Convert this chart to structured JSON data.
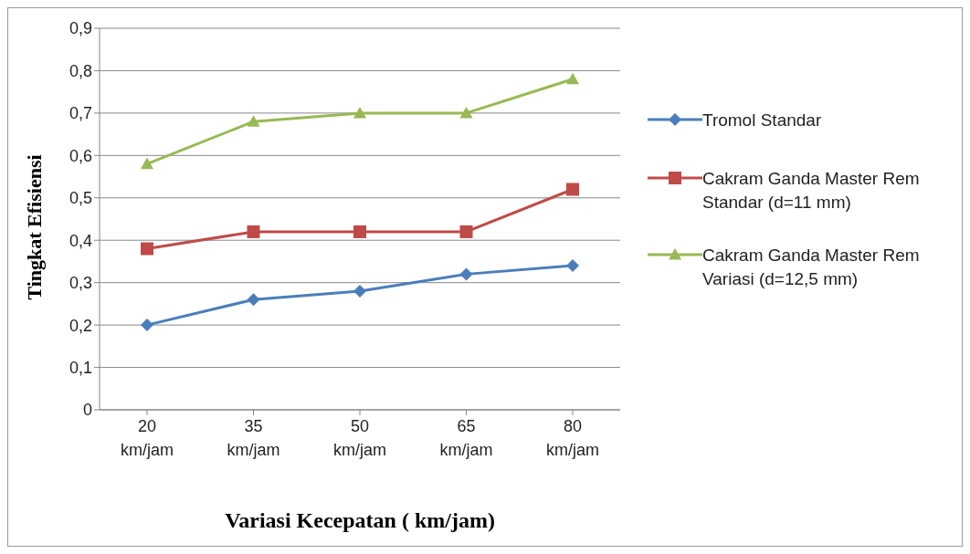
{
  "chart_data": {
    "type": "line",
    "xlabel": "Variasi Kecepatan ( km/jam)",
    "ylabel": "Tingkat Efisiensi",
    "categories": [
      "20 km/jam",
      "35 km/jam",
      "50 km/jam",
      "65 km/jam",
      "80 km/jam"
    ],
    "series": [
      {
        "name": "Tromol Standar",
        "color": "#4a7ebb",
        "marker": "diamond",
        "values": [
          0.2,
          0.26,
          0.28,
          0.32,
          0.34
        ]
      },
      {
        "name": "Cakram Ganda Master Rem Standar (d=11 mm)",
        "color": "#be4b48",
        "marker": "square",
        "values": [
          0.38,
          0.42,
          0.42,
          0.42,
          0.52
        ]
      },
      {
        "name": "Cakram Ganda Master Rem Variasi (d=12,5 mm)",
        "color": "#98b954",
        "marker": "triangle",
        "values": [
          0.58,
          0.68,
          0.7,
          0.7,
          0.78
        ]
      }
    ],
    "ylim": [
      0,
      0.9
    ],
    "yticks": [
      0,
      {
        "value": 0.1,
        "label": "0,1"
      },
      {
        "value": 0.2,
        "label": "0,2"
      },
      {
        "value": 0.3,
        "label": "0,3"
      },
      {
        "value": 0.4,
        "label": "0,4"
      },
      {
        "value": 0.5,
        "label": "0,5"
      },
      {
        "value": 0.6,
        "label": "0,6"
      },
      {
        "value": 0.7,
        "label": "0,7"
      },
      {
        "value": 0.8,
        "label": "0,8"
      },
      {
        "value": 0.9,
        "label": "0,9"
      }
    ],
    "grid": "y",
    "legend": "right",
    "line_style": "solid"
  }
}
